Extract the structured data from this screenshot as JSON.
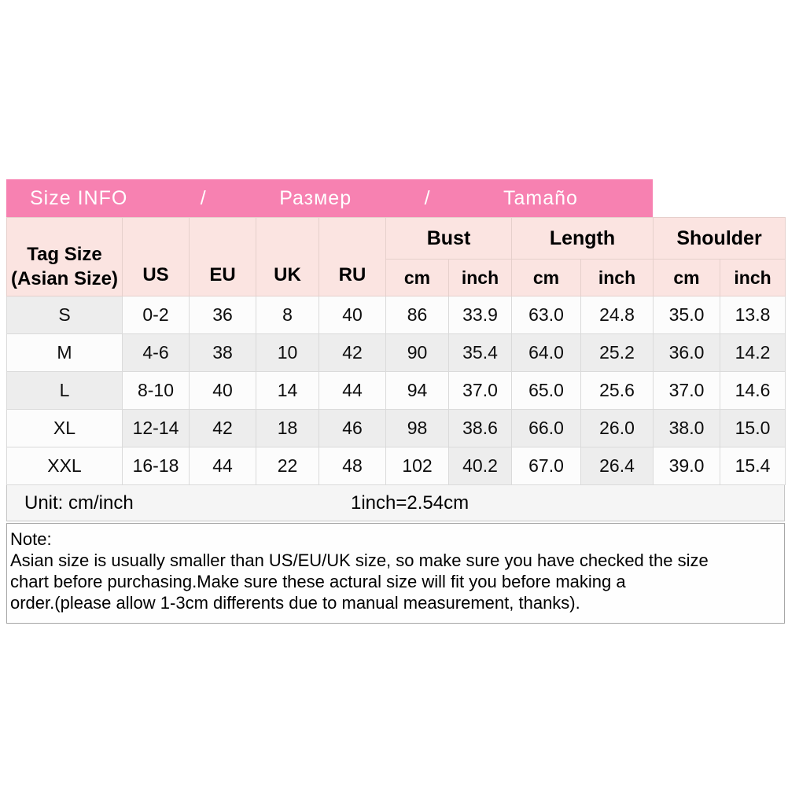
{
  "title_bar": {
    "items": [
      "Size INFO",
      "/",
      "Размер",
      "/",
      "Tamaño"
    ]
  },
  "chart_data": {
    "type": "table",
    "title": "Size INFO / Размер / Tamaño",
    "header": {
      "tag_line1": "Tag Size",
      "tag_line2": "(Asian Size)",
      "region_cols": [
        "US",
        "EU",
        "UK",
        "RU"
      ],
      "groups": [
        "Bust",
        "Length",
        "Shoulder"
      ],
      "sub_cols": [
        "cm",
        "inch",
        "cm",
        "inch",
        "cm",
        "inch"
      ]
    },
    "rows": [
      {
        "cells": [
          "S",
          "0-2",
          "36",
          "8",
          "40",
          "86",
          "33.9",
          "63.0",
          "24.8",
          "35.0",
          "13.8"
        ],
        "shading": [
          1,
          0,
          0,
          0,
          0,
          0,
          0,
          0,
          0,
          0,
          0
        ]
      },
      {
        "cells": [
          "M",
          "4-6",
          "38",
          "10",
          "42",
          "90",
          "35.4",
          "64.0",
          "25.2",
          "36.0",
          "14.2"
        ],
        "shading": [
          0,
          1,
          1,
          1,
          1,
          1,
          1,
          1,
          1,
          1,
          1
        ]
      },
      {
        "cells": [
          "L",
          "8-10",
          "40",
          "14",
          "44",
          "94",
          "37.0",
          "65.0",
          "25.6",
          "37.0",
          "14.6"
        ],
        "shading": [
          1,
          0,
          0,
          0,
          0,
          0,
          0,
          0,
          0,
          0,
          0
        ]
      },
      {
        "cells": [
          "XL",
          "12-14",
          "42",
          "18",
          "46",
          "98",
          "38.6",
          "66.0",
          "26.0",
          "38.0",
          "15.0"
        ],
        "shading": [
          0,
          1,
          1,
          1,
          1,
          1,
          1,
          1,
          1,
          1,
          1
        ]
      },
      {
        "cells": [
          "XXL",
          "16-18",
          "44",
          "22",
          "48",
          "102",
          "40.2",
          "67.0",
          "26.4",
          "39.0",
          "15.4"
        ],
        "shading": [
          0,
          0,
          0,
          0,
          0,
          0,
          1,
          0,
          1,
          0,
          0
        ]
      }
    ]
  },
  "footer": {
    "unit_label": "Unit: cm/inch",
    "conversion": "1inch=2.54cm"
  },
  "note": {
    "heading": "Note:",
    "lines": [
      "Asian size is usually smaller than US/EU/UK size, so make sure you have checked the size",
      "chart before purchasing.Make sure these actural size will fit you before making a",
      "order.(please allow 1-3cm differents due to manual measurement, thanks)."
    ]
  },
  "colors": {
    "title_bar_pink": "#f781b1",
    "header_pink": "#fbe4e1",
    "cell_gray": "#ededed",
    "cell_white": "#fcfcfc"
  }
}
